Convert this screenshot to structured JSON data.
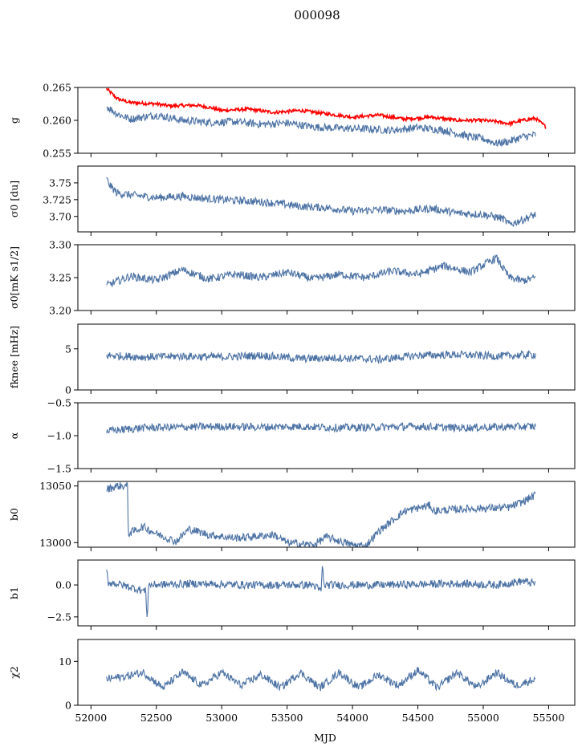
{
  "title": "000098",
  "xlabel": "MJD",
  "colors": {
    "series": "#4c72a4",
    "highlight": "#ff0000",
    "axes": "#000000"
  },
  "chart_data": {
    "type": "line",
    "title": "000098",
    "xlabel": "MJD",
    "xlim": [
      51900,
      55700
    ],
    "xticks": [
      52000,
      52500,
      53000,
      53500,
      54000,
      54500,
      55000,
      55500
    ],
    "xtick_labels": [
      "52000",
      "52500",
      "53000",
      "53500",
      "54000",
      "54500",
      "55000",
      "55500"
    ],
    "panels": [
      {
        "ylabel": "g",
        "ylim": [
          0.255,
          0.265
        ],
        "yticks": [
          0.255,
          0.26,
          0.265
        ],
        "ytick_labels": [
          "0.255",
          "0.260",
          "0.265"
        ],
        "series": [
          {
            "color": "#ff0000",
            "x": [
              52120,
              52200,
              52300,
              52500,
              52600,
              52800,
              52900,
              53000,
              53200,
              53400,
              53600,
              53800,
              54000,
              54200,
              54400,
              54600,
              54800,
              55000,
              55100,
              55200,
              55300,
              55400,
              55480
            ],
            "y": [
              0.2648,
              0.2633,
              0.2627,
              0.2625,
              0.2622,
              0.2623,
              0.262,
              0.2615,
              0.2617,
              0.2612,
              0.2615,
              0.261,
              0.2605,
              0.2608,
              0.2602,
              0.2605,
              0.26,
              0.26,
              0.2598,
              0.2595,
              0.26,
              0.2603,
              0.259
            ]
          },
          {
            "color": "#4c72a4",
            "x": [
              52120,
              52200,
              52300,
              52500,
              52700,
              52900,
              53100,
              53300,
              53500,
              53700,
              53900,
              54100,
              54300,
              54500,
              54700,
              54900,
              55000,
              55100,
              55200,
              55300,
              55400
            ],
            "y": [
              0.2621,
              0.261,
              0.2602,
              0.2608,
              0.26,
              0.2597,
              0.2598,
              0.2594,
              0.2596,
              0.259,
              0.2588,
              0.2587,
              0.2585,
              0.2589,
              0.2585,
              0.2575,
              0.2572,
              0.2565,
              0.2568,
              0.2575,
              0.2578
            ]
          }
        ]
      },
      {
        "ylabel": "σ0 [du]",
        "ylim": [
          3.677,
          3.775
        ],
        "yticks": [
          3.7,
          3.725,
          3.75
        ],
        "ytick_labels": [
          "3.70",
          "3.725",
          "3.75"
        ],
        "series": [
          {
            "color": "#4c72a4",
            "x": [
              52120,
              52150,
              52200,
              52300,
              52500,
              52700,
              52800,
              53000,
              53200,
              53400,
              53600,
              53800,
              54000,
              54200,
              54400,
              54600,
              54800,
              55000,
              55150,
              55200,
              55300,
              55400
            ],
            "y": [
              3.755,
              3.745,
              3.735,
              3.732,
              3.728,
              3.73,
              3.728,
              3.725,
              3.723,
              3.72,
              3.715,
              3.713,
              3.708,
              3.71,
              3.708,
              3.712,
              3.705,
              3.703,
              3.697,
              3.688,
              3.695,
              3.703
            ]
          }
        ]
      },
      {
        "ylabel": "σ0[mK s1/2]",
        "ylim": [
          3.2,
          3.3
        ],
        "yticks": [
          3.2,
          3.25,
          3.3
        ],
        "ytick_labels": [
          "3.20",
          "3.25",
          "3.30"
        ],
        "series": [
          {
            "color": "#4c72a4",
            "x": [
              52120,
              52300,
              52500,
              52700,
              52900,
              53100,
              53300,
              53500,
              53700,
              53900,
              54100,
              54300,
              54500,
              54700,
              54900,
              55100,
              55200,
              55300,
              55400
            ],
            "y": [
              3.238,
              3.252,
              3.246,
              3.262,
              3.248,
              3.255,
              3.25,
              3.258,
              3.248,
              3.255,
              3.25,
              3.26,
              3.255,
              3.268,
              3.258,
              3.28,
              3.25,
              3.245,
              3.25
            ]
          }
        ]
      },
      {
        "ylabel": "fknee [mHz]",
        "ylim": [
          0,
          8
        ],
        "yticks": [
          0,
          5
        ],
        "ytick_labels": [
          "0",
          "5"
        ],
        "series": [
          {
            "color": "#4c72a4",
            "x": [
              52120,
              52400,
              52700,
              53000,
              53300,
              53600,
              53900,
              54200,
              54500,
              54800,
              55100,
              55400
            ],
            "y": [
              4.2,
              4.0,
              4.1,
              4.0,
              4.2,
              3.8,
              3.9,
              3.7,
              4.2,
              4.3,
              4.1,
              4.3
            ]
          }
        ]
      },
      {
        "ylabel": "α",
        "ylim": [
          -1.5,
          -0.5
        ],
        "yticks": [
          -1.5,
          -1.0,
          -0.5
        ],
        "ytick_labels": [
          "−1.5",
          "−1.0",
          "−0.5"
        ],
        "series": [
          {
            "color": "#4c72a4",
            "x": [
              52120,
              52400,
              52700,
              53000,
              53300,
              53600,
              53900,
              54200,
              54500,
              54800,
              55100,
              55400
            ],
            "y": [
              -0.93,
              -0.88,
              -0.87,
              -0.86,
              -0.87,
              -0.86,
              -0.88,
              -0.87,
              -0.86,
              -0.88,
              -0.87,
              -0.86
            ]
          }
        ]
      },
      {
        "ylabel": "b0",
        "ylim": [
          12996,
          13054
        ],
        "yticks": [
          13000,
          13050
        ],
        "ytick_labels": [
          "13000",
          "13050"
        ],
        "series": [
          {
            "color": "#4c72a4",
            "x": [
              52120,
              52200,
              52280,
              52285,
              52400,
              52500,
              52650,
              52750,
              52900,
              53100,
              53400,
              53500,
              53700,
              53800,
              54000,
              54100,
              54200,
              54400,
              54600,
              54610,
              54900,
              55200,
              55300,
              55400
            ],
            "y": [
              13047,
              13050,
              13050,
              13008,
              13014,
              13008,
              13001,
              13012,
              13007,
              13004,
              13007,
              13000,
              12998,
              13005,
              12998,
              12997,
              13010,
              13028,
              13033,
              13028,
              13030,
              13031,
              13036,
              13042
            ]
          }
        ]
      },
      {
        "ylabel": "b1",
        "ylim": [
          -3.2,
          1.95
        ],
        "yticks": [
          -2.5,
          0.0
        ],
        "ytick_labels": [
          "−2.5",
          "0.0"
        ],
        "series": [
          {
            "color": "#4c72a4",
            "x": [
              52120,
              52130,
              52200,
              52420,
              52430,
              52440,
              52800,
              53200,
              53700,
              53760,
              53770,
              53780,
              54200,
              54800,
              55100,
              55300,
              55400
            ],
            "y": [
              1.2,
              0.2,
              0.1,
              -0.5,
              -2.8,
              0.0,
              0.1,
              0.0,
              0.0,
              -0.5,
              1.7,
              0.0,
              0.0,
              0.1,
              0.0,
              0.3,
              0.1
            ]
          }
        ]
      },
      {
        "ylabel": "χ2",
        "ylim": [
          0,
          15
        ],
        "yticks": [
          0,
          10
        ],
        "ytick_labels": [
          "0",
          "10"
        ],
        "series": [
          {
            "color": "#4c72a4",
            "x": [
              52120,
              52250,
              52400,
              52550,
              52700,
              52850,
              53000,
              53150,
              53300,
              53450,
              53600,
              53750,
              53900,
              54050,
              54200,
              54350,
              54500,
              54650,
              54800,
              54950,
              55100,
              55250,
              55400
            ],
            "y": [
              6,
              6.5,
              7.5,
              4,
              7.5,
              4.5,
              7.5,
              4.5,
              7,
              4,
              7.5,
              4,
              7.5,
              4,
              7,
              4.5,
              8,
              4,
              7.5,
              4,
              7.5,
              4.5,
              6
            ]
          }
        ]
      }
    ]
  }
}
